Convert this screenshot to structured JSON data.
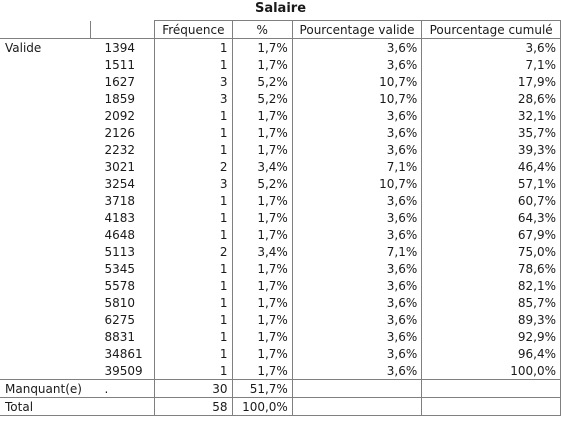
{
  "title": "Salaire",
  "headers": {
    "freq": "Fréquence",
    "pct": "%",
    "valid_pct": "Pourcentage valide",
    "cum_pct": "Pourcentage cumulé"
  },
  "group_valid": "Valide",
  "rows": [
    {
      "value": "1394",
      "freq": "1",
      "pct": "1,7%",
      "valid": "3,6%",
      "cum": "3,6%"
    },
    {
      "value": "1511",
      "freq": "1",
      "pct": "1,7%",
      "valid": "3,6%",
      "cum": "7,1%"
    },
    {
      "value": "1627",
      "freq": "3",
      "pct": "5,2%",
      "valid": "10,7%",
      "cum": "17,9%"
    },
    {
      "value": "1859",
      "freq": "3",
      "pct": "5,2%",
      "valid": "10,7%",
      "cum": "28,6%"
    },
    {
      "value": "2092",
      "freq": "1",
      "pct": "1,7%",
      "valid": "3,6%",
      "cum": "32,1%"
    },
    {
      "value": "2126",
      "freq": "1",
      "pct": "1,7%",
      "valid": "3,6%",
      "cum": "35,7%"
    },
    {
      "value": "2232",
      "freq": "1",
      "pct": "1,7%",
      "valid": "3,6%",
      "cum": "39,3%"
    },
    {
      "value": "3021",
      "freq": "2",
      "pct": "3,4%",
      "valid": "7,1%",
      "cum": "46,4%"
    },
    {
      "value": "3254",
      "freq": "3",
      "pct": "5,2%",
      "valid": "10,7%",
      "cum": "57,1%"
    },
    {
      "value": "3718",
      "freq": "1",
      "pct": "1,7%",
      "valid": "3,6%",
      "cum": "60,7%"
    },
    {
      "value": "4183",
      "freq": "1",
      "pct": "1,7%",
      "valid": "3,6%",
      "cum": "64,3%"
    },
    {
      "value": "4648",
      "freq": "1",
      "pct": "1,7%",
      "valid": "3,6%",
      "cum": "67,9%"
    },
    {
      "value": "5113",
      "freq": "2",
      "pct": "3,4%",
      "valid": "7,1%",
      "cum": "75,0%"
    },
    {
      "value": "5345",
      "freq": "1",
      "pct": "1,7%",
      "valid": "3,6%",
      "cum": "78,6%"
    },
    {
      "value": "5578",
      "freq": "1",
      "pct": "1,7%",
      "valid": "3,6%",
      "cum": "82,1%"
    },
    {
      "value": "5810",
      "freq": "1",
      "pct": "1,7%",
      "valid": "3,6%",
      "cum": "85,7%"
    },
    {
      "value": "6275",
      "freq": "1",
      "pct": "1,7%",
      "valid": "3,6%",
      "cum": "89,3%"
    },
    {
      "value": "8831",
      "freq": "1",
      "pct": "1,7%",
      "valid": "3,6%",
      "cum": "92,9%"
    },
    {
      "value": "34861",
      "freq": "1",
      "pct": "1,7%",
      "valid": "3,6%",
      "cum": "96,4%"
    },
    {
      "value": "39509",
      "freq": "1",
      "pct": "1,7%",
      "valid": "3,6%",
      "cum": "100,0%"
    }
  ],
  "missing": {
    "label": "Manquant(e)",
    "value": ".",
    "freq": "30",
    "pct": "51,7%"
  },
  "total": {
    "label": "Total",
    "freq": "58",
    "pct": "100,0%"
  }
}
